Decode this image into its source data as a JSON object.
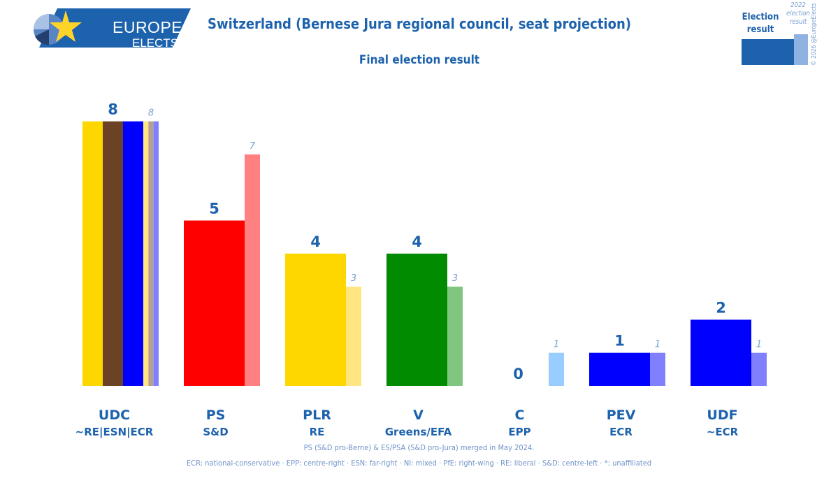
{
  "brand": {
    "line1": "EUROPE",
    "line2": "ELECTS"
  },
  "title": "Switzerland (Bernese Jura regional council, seat projection)",
  "subtitle": "Final election result",
  "legend_key": {
    "current": "Election result",
    "previous": "2022 election result"
  },
  "copyright": "© 2026 @EuropeElects",
  "footnotes": {
    "merge": "PS (S&D pro-Berne) & ES/PSA (S&D pro-Jura) merged in May 2024.",
    "groups": "ECR: national-conservative · EPP: centre-right · ESN: far-right · NI: mixed · PfE: right-wing · RE: liberal · S&D: centre-left · *: unaffiliated"
  },
  "chart_data": {
    "type": "bar",
    "title": "Switzerland (Bernese Jura regional council, seat projection)",
    "subtitle": "Final election result",
    "ylim": [
      0,
      8
    ],
    "grid": false,
    "series": [
      {
        "name": "Election result",
        "values": [
          8,
          5,
          4,
          4,
          0,
          1,
          2
        ]
      },
      {
        "name": "2022 election result",
        "values": [
          8,
          7,
          3,
          3,
          1,
          1,
          1
        ]
      }
    ],
    "categories": [
      {
        "party": "UDC",
        "group": "~RE|ESN|ECR",
        "current": 8,
        "previous": 8,
        "colors": [
          "#FFD700",
          "#6B4226",
          "#0000FF"
        ],
        "prev_colors": [
          "#FFE680",
          "#B5A093",
          "#8080FF"
        ]
      },
      {
        "party": "PS",
        "group": "S&D",
        "current": 5,
        "previous": 7,
        "colors": [
          "#FF0000"
        ],
        "prev_colors": [
          "#FF8080"
        ]
      },
      {
        "party": "PLR",
        "group": "RE",
        "current": 4,
        "previous": 3,
        "colors": [
          "#FFD700"
        ],
        "prev_colors": [
          "#FFE680"
        ]
      },
      {
        "party": "V",
        "group": "Greens/EFA",
        "current": 4,
        "previous": 3,
        "colors": [
          "#008B00"
        ],
        "prev_colors": [
          "#80C580"
        ]
      },
      {
        "party": "C",
        "group": "EPP",
        "current": 0,
        "previous": 1,
        "colors": [
          "#3399FF"
        ],
        "prev_colors": [
          "#99CCFF"
        ]
      },
      {
        "party": "PEV",
        "group": "ECR",
        "current": 1,
        "previous": 1,
        "colors": [
          "#0000FF"
        ],
        "prev_colors": [
          "#8080FF"
        ]
      },
      {
        "party": "UDF",
        "group": "~ECR",
        "current": 2,
        "previous": 1,
        "colors": [
          "#0000FF"
        ],
        "prev_colors": [
          "#8080FF"
        ]
      }
    ]
  }
}
